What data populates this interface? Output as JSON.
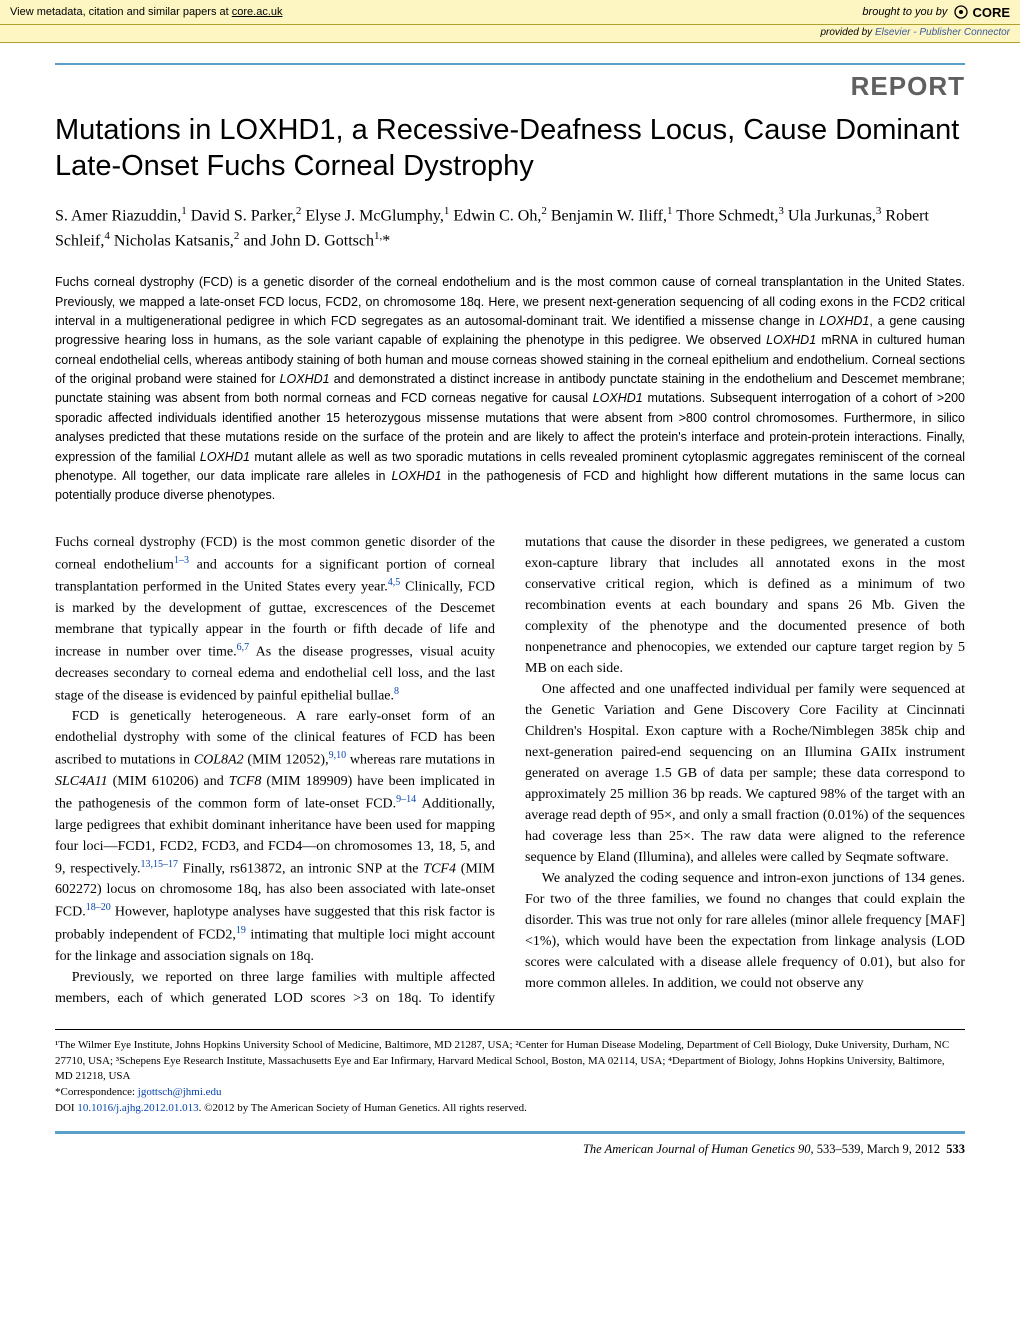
{
  "colors": {
    "rule": "#5aa0c8",
    "banner_bg": "#fdf6c3",
    "banner_border": "#b0a030",
    "link": "#0645ad",
    "section_label": "#606060"
  },
  "banner": {
    "left_pre": "View metadata, citation and similar papers at ",
    "left_link": "core.ac.uk",
    "brought": "brought to you by",
    "logo": "CORE",
    "provided_pre": "provided by ",
    "provided_link": "Elsevier - Publisher Connector"
  },
  "section_label": "REPORT",
  "title": "Mutations in LOXHD1, a Recessive-Deafness Locus, Cause Dominant Late-Onset Fuchs Corneal Dystrophy",
  "authors_html": "S. Amer Riazuddin,<sup>1</sup> David S. Parker,<sup>2</sup> Elyse J. McGlumphy,<sup>1</sup> Edwin C. Oh,<sup>2</sup> Benjamin W. Iliff,<sup>1</sup> Thore Schmedt,<sup>3</sup> Ula Jurkunas,<sup>3</sup> Robert Schleif,<sup>4</sup> Nicholas Katsanis,<sup>2</sup> and John D. Gottsch<sup>1,</sup>*",
  "abstract": "Fuchs corneal dystrophy (FCD) is a genetic disorder of the corneal endothelium and is the most common cause of corneal transplantation in the United States. Previously, we mapped a late-onset FCD locus, FCD2, on chromosome 18q. Here, we present next-generation sequencing of all coding exons in the FCD2 critical interval in a multigenerational pedigree in which FCD segregates as an autosomal-dominant trait. We identified a missense change in LOXHD1, a gene causing progressive hearing loss in humans, as the sole variant capable of explaining the phenotype in this pedigree. We observed LOXHD1 mRNA in cultured human corneal endothelial cells, whereas antibody staining of both human and mouse corneas showed staining in the corneal epithelium and endothelium. Corneal sections of the original proband were stained for LOXHD1 and demonstrated a distinct increase in antibody punctate staining in the endothelium and Descemet membrane; punctate staining was absent from both normal corneas and FCD corneas negative for causal LOXHD1 mutations. Subsequent interrogation of a cohort of >200 sporadic affected individuals identified another 15 heterozygous missense mutations that were absent from >800 control chromosomes. Furthermore, in silico analyses predicted that these mutations reside on the surface of the protein and are likely to affect the protein's interface and protein-protein interactions. Finally, expression of the familial LOXHD1 mutant allele as well as two sporadic mutations in cells revealed prominent cytoplasmic aggregates reminiscent of the corneal phenotype. All together, our data implicate rare alleles in LOXHD1 in the pathogenesis of FCD and highlight how different mutations in the same locus can potentially produce diverse phenotypes.",
  "body": {
    "p1": "Fuchs corneal dystrophy (FCD) is the most common genetic disorder of the corneal endothelium",
    "p1_sup1": "1–3",
    "p1_b": " and accounts for a significant portion of corneal transplantation performed in the United States every year.",
    "p1_sup2": "4,5",
    "p1_c": " Clinically, FCD is marked by the development of guttae, excrescences of the Descemet membrane that typically appear in the fourth or fifth decade of life and increase in number over time.",
    "p1_sup3": "6,7",
    "p1_d": " As the disease progresses, visual acuity decreases secondary to corneal edema and endothelial cell loss, and the last stage of the disease is evidenced by painful epithelial bullae.",
    "p1_sup4": "8",
    "p2a": "FCD is genetically heterogeneous. A rare early-onset form of an endothelial dystrophy with some of the clinical features of FCD has been ascribed to mutations in ",
    "p2_gene1": "COL8A2",
    "p2b": " (MIM 12052),",
    "p2_sup1": "9,10",
    "p2c": " whereas rare mutations in ",
    "p2_gene2": "SLC4A11",
    "p2d": " (MIM 610206) and ",
    "p2_gene3": "TCF8",
    "p2e": " (MIM 189909) have been implicated in the pathogenesis of the common form of late-onset FCD.",
    "p2_sup2": "9–14",
    "p2f": " Additionally, large pedigrees that exhibit dominant inheritance have been used for mapping four loci—FCD1, FCD2, FCD3, and FCD4—on chromosomes 13, 18, 5, and 9, respectively.",
    "p2_sup3": "13,15–17",
    "p2g": " Finally, rs613872, an intronic SNP at the ",
    "p2_gene4": "TCF4",
    "p2h": " (MIM 602272) locus on chromosome 18q, has also been associated with late-onset FCD.",
    "p2_sup4": "18–20",
    "p2i": " However, haplotype analyses have suggested that this risk factor is probably independent of FCD2,",
    "p2_sup5": "19",
    "p2j": " intimating that multiple loci might account for the linkage and association signals on 18q.",
    "p3": "Previously, we reported on three large families with multiple affected members, each of which generated LOD scores >3 on 18q. To identify mutations that cause the disorder in these pedigrees, we generated a custom exon-capture library that includes all annotated exons in the most conservative critical region, which is defined as a minimum of two recombination events at each boundary and spans 26 Mb. Given the complexity of the phenotype and the documented presence of both nonpenetrance and phenocopies, we extended our capture target region by 5 MB on each side.",
    "p4": "One affected and one unaffected individual per family were sequenced at the Genetic Variation and Gene Discovery Core Facility at Cincinnati Children's Hospital. Exon capture with a Roche/Nimblegen 385k chip and next-generation paired-end sequencing on an Illumina GAIIx instrument generated on average 1.5 GB of data per sample; these data correspond to approximately 25 million 36 bp reads. We captured 98% of the target with an average read depth of 95×, and only a small fraction (0.01%) of the sequences had coverage less than 25×. The raw data were aligned to the reference sequence by Eland (Illumina), and alleles were called by Seqmate software.",
    "p5": "We analyzed the coding sequence and intron-exon junctions of 134 genes. For two of the three families, we found no changes that could explain the disorder. This was true not only for rare alleles (minor allele frequency [MAF] <1%), which would have been the expectation from linkage analysis (LOD scores were calculated with a disease allele frequency of 0.01), but also for more common alleles. In addition, we could not observe any"
  },
  "footnotes": {
    "affil": "¹The Wilmer Eye Institute, Johns Hopkins University School of Medicine, Baltimore, MD 21287, USA; ²Center for Human Disease Modeling, Department of Cell Biology, Duke University, Durham, NC 27710, USA; ³Schepens Eye Research Institute, Massachusetts Eye and Ear Infirmary, Harvard Medical School, Boston, MA 02114, USA; ⁴Department of Biology, Johns Hopkins University, Baltimore, MD 21218, USA",
    "corr_label": "*Correspondence: ",
    "corr_email": "jgottsch@jhmi.edu",
    "doi_label": "DOI ",
    "doi": "10.1016/j.ajhg.2012.01.013",
    "copyright": ". ©2012 by The American Society of Human Genetics. All rights reserved."
  },
  "footer": {
    "journal": "The American Journal of Human Genetics",
    "vol": " 90",
    "pages": ", 533–539, ",
    "date": "March 9, 2012",
    "page_no": "533"
  }
}
